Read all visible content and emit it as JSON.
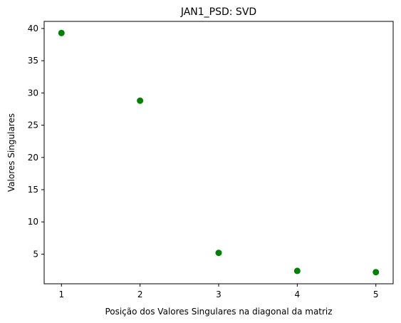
{
  "chart_data": {
    "type": "scatter",
    "title": "JAN1_PSD: SVD",
    "xlabel": "Posição dos Valores Singulares na diagonal da matriz",
    "ylabel": "Valores Singulares",
    "x": [
      1,
      2,
      3,
      4,
      5
    ],
    "y": [
      39.3,
      28.8,
      5.2,
      2.4,
      2.2
    ],
    "xlim": [
      0.78,
      5.22
    ],
    "ylim": [
      0.4,
      41.1
    ],
    "xticks": [
      1,
      2,
      3,
      4,
      5
    ],
    "yticks": [
      5,
      10,
      15,
      20,
      25,
      30,
      35,
      40
    ],
    "marker_color": "#008000",
    "grid": false
  }
}
